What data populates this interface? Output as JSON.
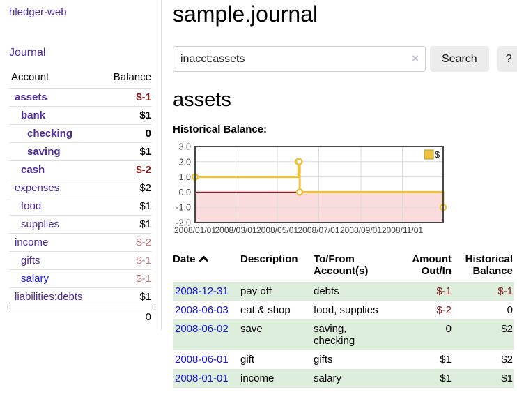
{
  "app": {
    "title": "hledger-web"
  },
  "sidebar": {
    "journal_label": "Journal",
    "accounts_table": {
      "headers": [
        "Account",
        "Balance"
      ],
      "rows": [
        {
          "name": "assets",
          "balance": "$-1"
        },
        {
          "name": "bank",
          "balance": "$1"
        },
        {
          "name": "checking",
          "balance": "0"
        },
        {
          "name": "saving",
          "balance": "$1"
        },
        {
          "name": "cash",
          "balance": "$-2"
        },
        {
          "name": "expenses",
          "balance": "$2"
        },
        {
          "name": "food",
          "balance": "$1"
        },
        {
          "name": "supplies",
          "balance": "$1"
        },
        {
          "name": "income",
          "balance": "$-2"
        },
        {
          "name": "gifts",
          "balance": "$-1"
        },
        {
          "name": "salary",
          "balance": "$-1"
        },
        {
          "name": "liabilities:debts",
          "balance": "$1"
        }
      ],
      "total": "0"
    }
  },
  "header": {
    "title": "sample.journal"
  },
  "search": {
    "value": "inacct:assets",
    "clear_icon": "×",
    "button_label": "Search",
    "help_label": "?"
  },
  "main": {
    "heading": "assets",
    "chart_label": "Historical Balance:"
  },
  "chart_data": {
    "type": "line",
    "step": true,
    "title": "Historical Balance:",
    "series": [
      {
        "name": "$",
        "color": "#edc240",
        "points": [
          [
            "2008-01-01",
            1
          ],
          [
            "2008-06-01",
            2
          ],
          [
            "2008-06-02",
            2
          ],
          [
            "2008-06-03",
            0
          ],
          [
            "2008-12-31",
            -1
          ]
        ]
      }
    ],
    "ylim": [
      -2.0,
      3.0
    ],
    "yticks": [
      3.0,
      2.0,
      1.0,
      0.0,
      -1.0,
      -2.0
    ],
    "x_range": [
      "2008-01-01",
      "2008-12-31"
    ],
    "xtick_labels": [
      "2008/01/01",
      "2008/03/01",
      "2008/05/01",
      "2008/07/01",
      "2008/09/01",
      "2008/11/01"
    ],
    "legend": {
      "position": "top-right"
    },
    "grid": true,
    "negative_region_fill": "#fbdcdc",
    "zero_line_color": "#a01818"
  },
  "register": {
    "headers": [
      "Date",
      "Description",
      "To/From Account(s)",
      "Amount Out/In",
      "Historical Balance"
    ],
    "sort": {
      "column": "Date",
      "direction": "asc"
    },
    "rows": [
      {
        "date": "2008-12-31",
        "description": "pay off",
        "accounts": "debts",
        "amount": "$-1",
        "balance": "$-1"
      },
      {
        "date": "2008-06-03",
        "description": "eat & shop",
        "accounts": "food, supplies",
        "amount": "$-2",
        "balance": "0"
      },
      {
        "date": "2008-06-02",
        "description": "save",
        "accounts": "saving, checking",
        "amount": "0",
        "balance": "$2"
      },
      {
        "date": "2008-06-01",
        "description": "gift",
        "accounts": "gifts",
        "amount": "$1",
        "balance": "$2"
      },
      {
        "date": "2008-01-01",
        "description": "income",
        "accounts": "salary",
        "amount": "$1",
        "balance": "$1"
      }
    ]
  }
}
